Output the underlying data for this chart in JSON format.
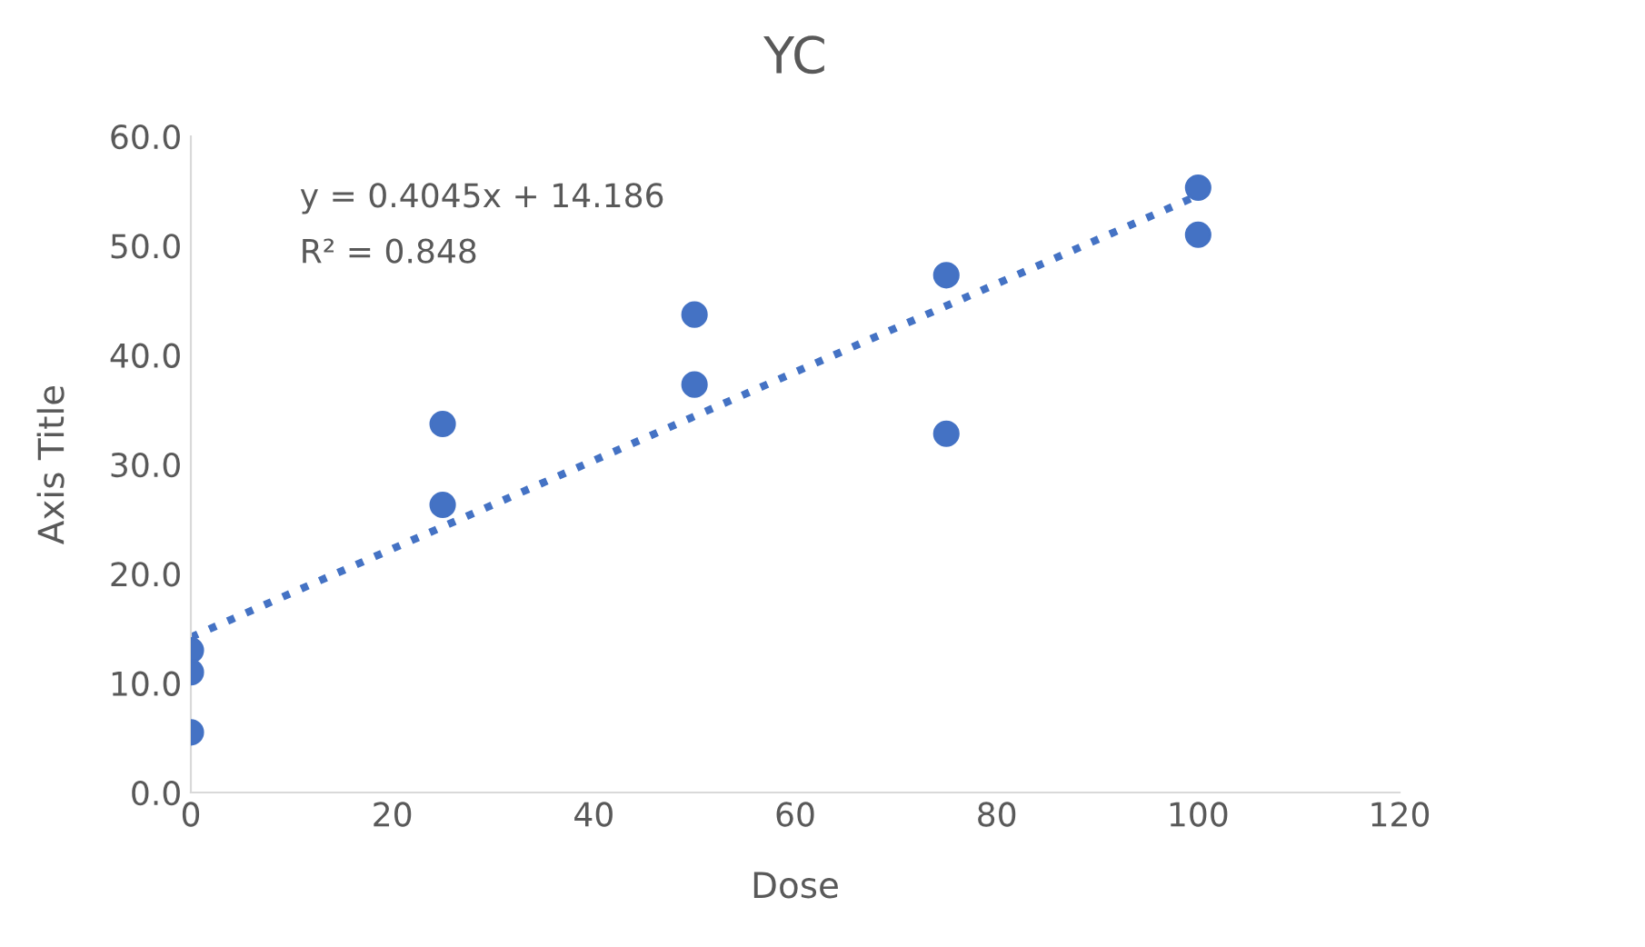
{
  "chart_data": {
    "type": "scatter",
    "title": "YC",
    "xlabel": "Dose",
    "ylabel": "Axis Title",
    "series": [
      {
        "color": "#4472c4",
        "marker": "circle",
        "x": [
          0,
          0,
          0,
          25,
          25,
          50,
          50,
          75,
          75,
          100,
          100
        ],
        "values": [
          13.0,
          11.0,
          5.5,
          33.7,
          26.3,
          43.7,
          37.3,
          47.3,
          32.8,
          55.3,
          51.0
        ]
      },
      {
        "type": "line",
        "color": "#4472c4",
        "line_style": "dotted",
        "x": [
          0,
          100
        ],
        "values": [
          14.2,
          54.6
        ]
      }
    ],
    "annotations": [
      "y = 0.4045x + 14.186",
      "R² = 0.848"
    ],
    "xlim": [
      0,
      120
    ],
    "xticks": [
      0,
      20,
      40,
      60,
      80,
      100,
      120
    ],
    "ylim": [
      0,
      60
    ],
    "yticks": [
      {
        "value": 0,
        "label": "0.0"
      },
      {
        "value": 10,
        "label": "10.0"
      },
      {
        "value": 20,
        "label": "20.0"
      },
      {
        "value": 30,
        "label": "30.0"
      },
      {
        "value": 40,
        "label": "40.0"
      },
      {
        "value": 50,
        "label": "50.0"
      },
      {
        "value": 60,
        "label": "60.0"
      }
    ],
    "grid": false,
    "legend": false
  }
}
